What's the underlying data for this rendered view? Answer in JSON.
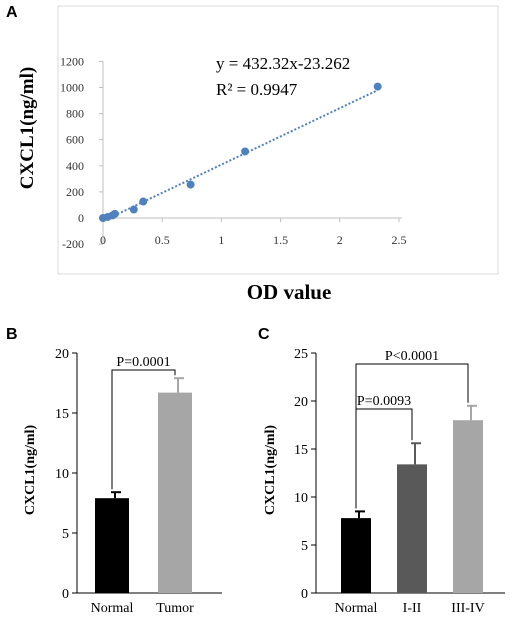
{
  "panels": {
    "a": {
      "letter": "A"
    },
    "b": {
      "letter": "B"
    },
    "c": {
      "letter": "C"
    }
  },
  "chart_data": [
    {
      "panel": "A",
      "type": "scatter",
      "xlabel": "OD value",
      "ylabel": "CXCL1(ng/ml)",
      "xlim": [
        0,
        2.5
      ],
      "ylim": [
        -200,
        1200
      ],
      "xticks": [
        "0",
        "0.5",
        "1",
        "1.5",
        "2",
        "2.5"
      ],
      "yticks": [
        "-200",
        "0",
        "200",
        "400",
        "600",
        "800",
        "1000",
        "1200"
      ],
      "grid": false,
      "points": [
        {
          "x": 0.0,
          "y": 0
        },
        {
          "x": 0.04,
          "y": 8
        },
        {
          "x": 0.08,
          "y": 20
        },
        {
          "x": 0.1,
          "y": 32
        },
        {
          "x": 0.26,
          "y": 65
        },
        {
          "x": 0.34,
          "y": 126
        },
        {
          "x": 0.74,
          "y": 256
        },
        {
          "x": 1.2,
          "y": 510
        },
        {
          "x": 2.32,
          "y": 1007
        }
      ],
      "trendline": {
        "slope": 432.32,
        "intercept": -23.262,
        "x_range": [
          0,
          2.32
        ]
      },
      "annotations": {
        "equation": "y = 432.32x-23.262",
        "r2": "R² = 0.9947"
      },
      "colors": {
        "points": "#4f81bd",
        "trendline": "#4f81bd"
      }
    },
    {
      "panel": "B",
      "type": "bar",
      "ylabel": "CXCL1(ng/ml)",
      "ylim": [
        0,
        20
      ],
      "yticks": [
        "0",
        "5",
        "10",
        "15",
        "20"
      ],
      "categories": [
        "Normal",
        "Tumor"
      ],
      "values": [
        7.9,
        16.7
      ],
      "errors": [
        0.5,
        1.2
      ],
      "colors": [
        "#000000",
        "#a6a6a6"
      ],
      "significance": [
        {
          "from": 0,
          "to": 1,
          "label": "P=0.0001"
        }
      ]
    },
    {
      "panel": "C",
      "type": "bar",
      "ylabel": "CXCL1(ng/ml)",
      "ylim": [
        0,
        25
      ],
      "yticks": [
        "0",
        "5",
        "10",
        "15",
        "20",
        "25"
      ],
      "categories": [
        "Normal",
        "I-II",
        "III-IV"
      ],
      "values": [
        7.8,
        13.4,
        18.0
      ],
      "errors": [
        0.7,
        2.2,
        1.5
      ],
      "colors": [
        "#000000",
        "#595959",
        "#a6a6a6"
      ],
      "significance": [
        {
          "from": 0,
          "to": 1,
          "label": "P=0.0093"
        },
        {
          "from": 0,
          "to": 2,
          "label": "P<0.0001"
        }
      ]
    }
  ]
}
